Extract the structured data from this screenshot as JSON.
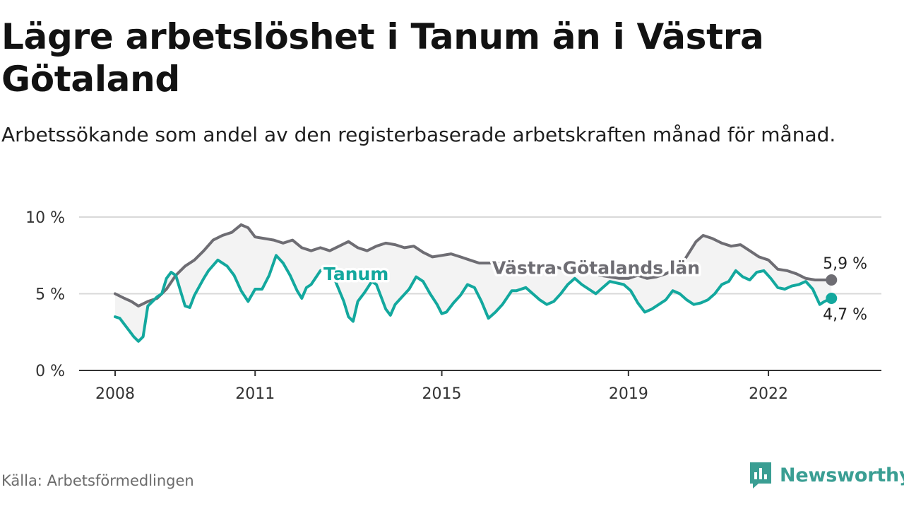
{
  "header": {
    "title": "Lägre arbetslöshet i Tanum än i Västra Götaland",
    "subtitle": "Arbetssökande som andel av den registerbaserade arbetskraften månad för månad."
  },
  "footer": {
    "source": "Källa: Arbetsförmedlingen",
    "brand": "Newsworthy",
    "brand_icon": "bar-chart-speech-bubble-icon"
  },
  "colors": {
    "tanum": "#13a89e",
    "region": "#6e6d73",
    "band": "#f3f3f3",
    "grid": "#d9d9d9",
    "axis": "#333333",
    "brand": "#3a9e93"
  },
  "chart_data": {
    "type": "line",
    "title": "Lägre arbetslöshet i Tanum än i Västra Götaland",
    "xlabel": "",
    "ylabel": "",
    "xlim": [
      2008,
      2023.8
    ],
    "ylim": [
      0,
      10
    ],
    "x_ticks": [
      {
        "value": 2008,
        "label": "2008"
      },
      {
        "value": 2011,
        "label": "2011"
      },
      {
        "value": 2015,
        "label": "2015"
      },
      {
        "value": 2019,
        "label": "2019"
      },
      {
        "value": 2022,
        "label": "2022"
      }
    ],
    "y_ticks": [
      {
        "value": 0,
        "label": "0 %"
      },
      {
        "value": 5,
        "label": "5 %"
      },
      {
        "value": 10,
        "label": "10 %"
      }
    ],
    "grid": true,
    "series": [
      {
        "name": "Västra Götalands län",
        "label": "Västra Götalands län",
        "end_label": "5,9 %",
        "points": [
          [
            2008.0,
            5.0
          ],
          [
            2008.2,
            4.7
          ],
          [
            2008.35,
            4.5
          ],
          [
            2008.5,
            4.2
          ],
          [
            2008.7,
            4.5
          ],
          [
            2008.9,
            4.7
          ],
          [
            2009.1,
            5.3
          ],
          [
            2009.3,
            6.2
          ],
          [
            2009.5,
            6.8
          ],
          [
            2009.7,
            7.2
          ],
          [
            2009.9,
            7.8
          ],
          [
            2010.1,
            8.5
          ],
          [
            2010.3,
            8.8
          ],
          [
            2010.5,
            9.0
          ],
          [
            2010.7,
            9.5
          ],
          [
            2010.85,
            9.3
          ],
          [
            2011.0,
            8.7
          ],
          [
            2011.2,
            8.6
          ],
          [
            2011.4,
            8.5
          ],
          [
            2011.6,
            8.3
          ],
          [
            2011.8,
            8.5
          ],
          [
            2012.0,
            8.0
          ],
          [
            2012.2,
            7.8
          ],
          [
            2012.4,
            8.0
          ],
          [
            2012.6,
            7.8
          ],
          [
            2012.8,
            8.1
          ],
          [
            2013.0,
            8.4
          ],
          [
            2013.2,
            8.0
          ],
          [
            2013.4,
            7.8
          ],
          [
            2013.6,
            8.1
          ],
          [
            2013.8,
            8.3
          ],
          [
            2014.0,
            8.2
          ],
          [
            2014.2,
            8.0
          ],
          [
            2014.4,
            8.1
          ],
          [
            2014.6,
            7.7
          ],
          [
            2014.8,
            7.4
          ],
          [
            2015.0,
            7.5
          ],
          [
            2015.2,
            7.6
          ],
          [
            2015.4,
            7.4
          ],
          [
            2015.6,
            7.2
          ],
          [
            2015.8,
            7.0
          ],
          [
            2016.0,
            7.0
          ],
          [
            2016.2,
            7.0
          ],
          [
            2016.4,
            6.8
          ],
          [
            2016.6,
            6.5
          ],
          [
            2016.8,
            6.5
          ],
          [
            2017.0,
            6.5
          ],
          [
            2017.2,
            6.7
          ],
          [
            2017.4,
            6.8
          ],
          [
            2017.6,
            6.6
          ],
          [
            2017.8,
            6.5
          ],
          [
            2018.0,
            6.6
          ],
          [
            2018.2,
            6.4
          ],
          [
            2018.4,
            6.2
          ],
          [
            2018.6,
            6.1
          ],
          [
            2018.8,
            6.0
          ],
          [
            2019.0,
            6.0
          ],
          [
            2019.2,
            6.2
          ],
          [
            2019.4,
            6.0
          ],
          [
            2019.6,
            6.1
          ],
          [
            2019.8,
            6.3
          ],
          [
            2020.0,
            6.6
          ],
          [
            2020.2,
            7.2
          ],
          [
            2020.45,
            8.4
          ],
          [
            2020.6,
            8.8
          ],
          [
            2020.8,
            8.6
          ],
          [
            2021.0,
            8.3
          ],
          [
            2021.2,
            8.1
          ],
          [
            2021.4,
            8.2
          ],
          [
            2021.6,
            7.8
          ],
          [
            2021.8,
            7.4
          ],
          [
            2022.0,
            7.2
          ],
          [
            2022.2,
            6.6
          ],
          [
            2022.4,
            6.5
          ],
          [
            2022.6,
            6.3
          ],
          [
            2022.8,
            6.0
          ],
          [
            2023.0,
            5.9
          ],
          [
            2023.2,
            5.9
          ],
          [
            2023.35,
            5.9
          ]
        ]
      },
      {
        "name": "Tanum",
        "label": "Tanum",
        "end_label": "4,7 %",
        "points": [
          [
            2008.0,
            3.5
          ],
          [
            2008.1,
            3.4
          ],
          [
            2008.2,
            3.0
          ],
          [
            2008.3,
            2.6
          ],
          [
            2008.4,
            2.2
          ],
          [
            2008.5,
            1.9
          ],
          [
            2008.6,
            2.2
          ],
          [
            2008.7,
            4.2
          ],
          [
            2008.8,
            4.5
          ],
          [
            2008.9,
            4.8
          ],
          [
            2009.0,
            5.0
          ],
          [
            2009.1,
            6.0
          ],
          [
            2009.2,
            6.4
          ],
          [
            2009.3,
            6.2
          ],
          [
            2009.4,
            5.2
          ],
          [
            2009.5,
            4.2
          ],
          [
            2009.6,
            4.1
          ],
          [
            2009.7,
            4.9
          ],
          [
            2009.9,
            6.0
          ],
          [
            2010.0,
            6.5
          ],
          [
            2010.2,
            7.2
          ],
          [
            2010.4,
            6.8
          ],
          [
            2010.55,
            6.2
          ],
          [
            2010.7,
            5.2
          ],
          [
            2010.85,
            4.5
          ],
          [
            2011.0,
            5.3
          ],
          [
            2011.15,
            5.3
          ],
          [
            2011.3,
            6.2
          ],
          [
            2011.45,
            7.5
          ],
          [
            2011.6,
            7.0
          ],
          [
            2011.75,
            6.2
          ],
          [
            2011.9,
            5.2
          ],
          [
            2012.0,
            4.7
          ],
          [
            2012.1,
            5.4
          ],
          [
            2012.2,
            5.6
          ],
          [
            2012.4,
            6.5
          ],
          [
            2012.6,
            6.8
          ],
          [
            2012.75,
            5.6
          ],
          [
            2012.9,
            4.5
          ],
          [
            2013.0,
            3.5
          ],
          [
            2013.1,
            3.2
          ],
          [
            2013.2,
            4.5
          ],
          [
            2013.35,
            5.1
          ],
          [
            2013.5,
            5.8
          ],
          [
            2013.6,
            5.6
          ],
          [
            2013.7,
            4.8
          ],
          [
            2013.8,
            4.0
          ],
          [
            2013.9,
            3.6
          ],
          [
            2014.0,
            4.3
          ],
          [
            2014.15,
            4.8
          ],
          [
            2014.3,
            5.3
          ],
          [
            2014.45,
            6.1
          ],
          [
            2014.6,
            5.8
          ],
          [
            2014.75,
            5.0
          ],
          [
            2014.9,
            4.3
          ],
          [
            2015.0,
            3.7
          ],
          [
            2015.1,
            3.8
          ],
          [
            2015.25,
            4.4
          ],
          [
            2015.4,
            4.9
          ],
          [
            2015.55,
            5.6
          ],
          [
            2015.7,
            5.4
          ],
          [
            2015.85,
            4.5
          ],
          [
            2016.0,
            3.4
          ],
          [
            2016.15,
            3.8
          ],
          [
            2016.3,
            4.3
          ],
          [
            2016.5,
            5.2
          ],
          [
            2016.6,
            5.2
          ],
          [
            2016.8,
            5.4
          ],
          [
            2016.95,
            5.0
          ],
          [
            2017.1,
            4.6
          ],
          [
            2017.25,
            4.3
          ],
          [
            2017.4,
            4.5
          ],
          [
            2017.55,
            5.0
          ],
          [
            2017.7,
            5.6
          ],
          [
            2017.85,
            6.0
          ],
          [
            2018.0,
            5.6
          ],
          [
            2018.15,
            5.3
          ],
          [
            2018.3,
            5.0
          ],
          [
            2018.45,
            5.4
          ],
          [
            2018.6,
            5.8
          ],
          [
            2018.75,
            5.7
          ],
          [
            2018.9,
            5.6
          ],
          [
            2019.05,
            5.2
          ],
          [
            2019.2,
            4.4
          ],
          [
            2019.35,
            3.8
          ],
          [
            2019.5,
            4.0
          ],
          [
            2019.65,
            4.3
          ],
          [
            2019.8,
            4.6
          ],
          [
            2019.95,
            5.2
          ],
          [
            2020.1,
            5.0
          ],
          [
            2020.25,
            4.6
          ],
          [
            2020.4,
            4.3
          ],
          [
            2020.55,
            4.4
          ],
          [
            2020.7,
            4.6
          ],
          [
            2020.85,
            5.0
          ],
          [
            2021.0,
            5.6
          ],
          [
            2021.15,
            5.8
          ],
          [
            2021.3,
            6.5
          ],
          [
            2021.45,
            6.1
          ],
          [
            2021.6,
            5.9
          ],
          [
            2021.75,
            6.4
          ],
          [
            2021.9,
            6.5
          ],
          [
            2022.05,
            6.0
          ],
          [
            2022.2,
            5.4
          ],
          [
            2022.35,
            5.3
          ],
          [
            2022.5,
            5.5
          ],
          [
            2022.65,
            5.6
          ],
          [
            2022.8,
            5.8
          ],
          [
            2022.95,
            5.3
          ],
          [
            2023.1,
            4.3
          ],
          [
            2023.2,
            4.5
          ],
          [
            2023.35,
            4.7
          ]
        ]
      }
    ],
    "annotations": [
      {
        "text": "Tanum",
        "series": "Tanum"
      },
      {
        "text": "Västra Götalands län",
        "series": "Västra Götalands län"
      }
    ]
  }
}
